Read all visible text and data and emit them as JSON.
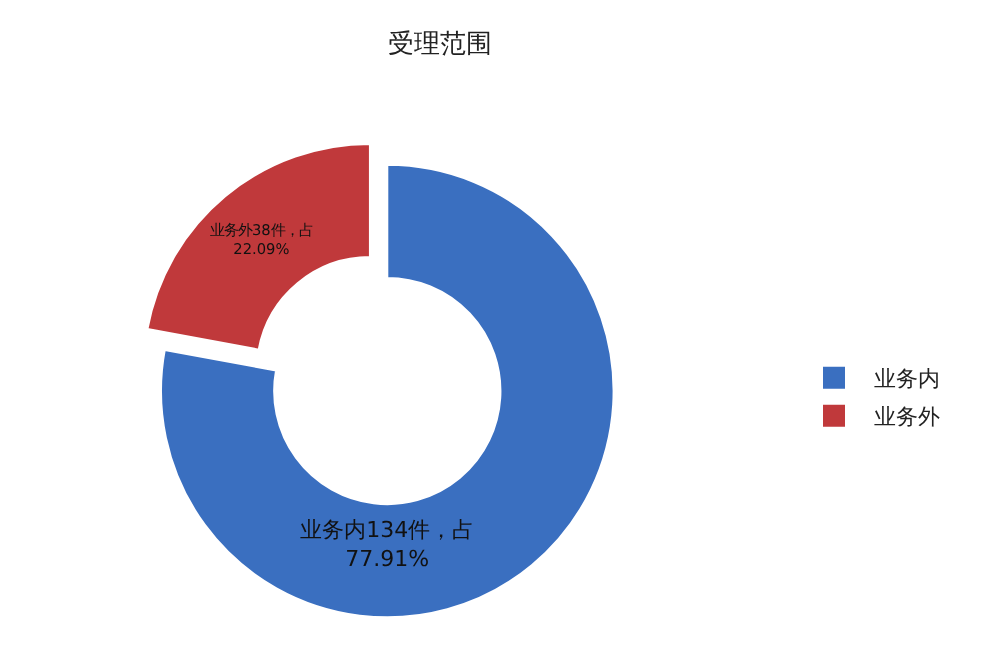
{
  "chart_data": {
    "type": "donut",
    "title": "受理范围",
    "categories": [
      "业务内",
      "业务外"
    ],
    "values": [
      134,
      38
    ],
    "colors": [
      "#3a6fc0",
      "#c0393b"
    ],
    "value_labels": [
      "业务内134件，占77.91%",
      "业务外38件，占22.09%"
    ],
    "legend": "right"
  }
}
